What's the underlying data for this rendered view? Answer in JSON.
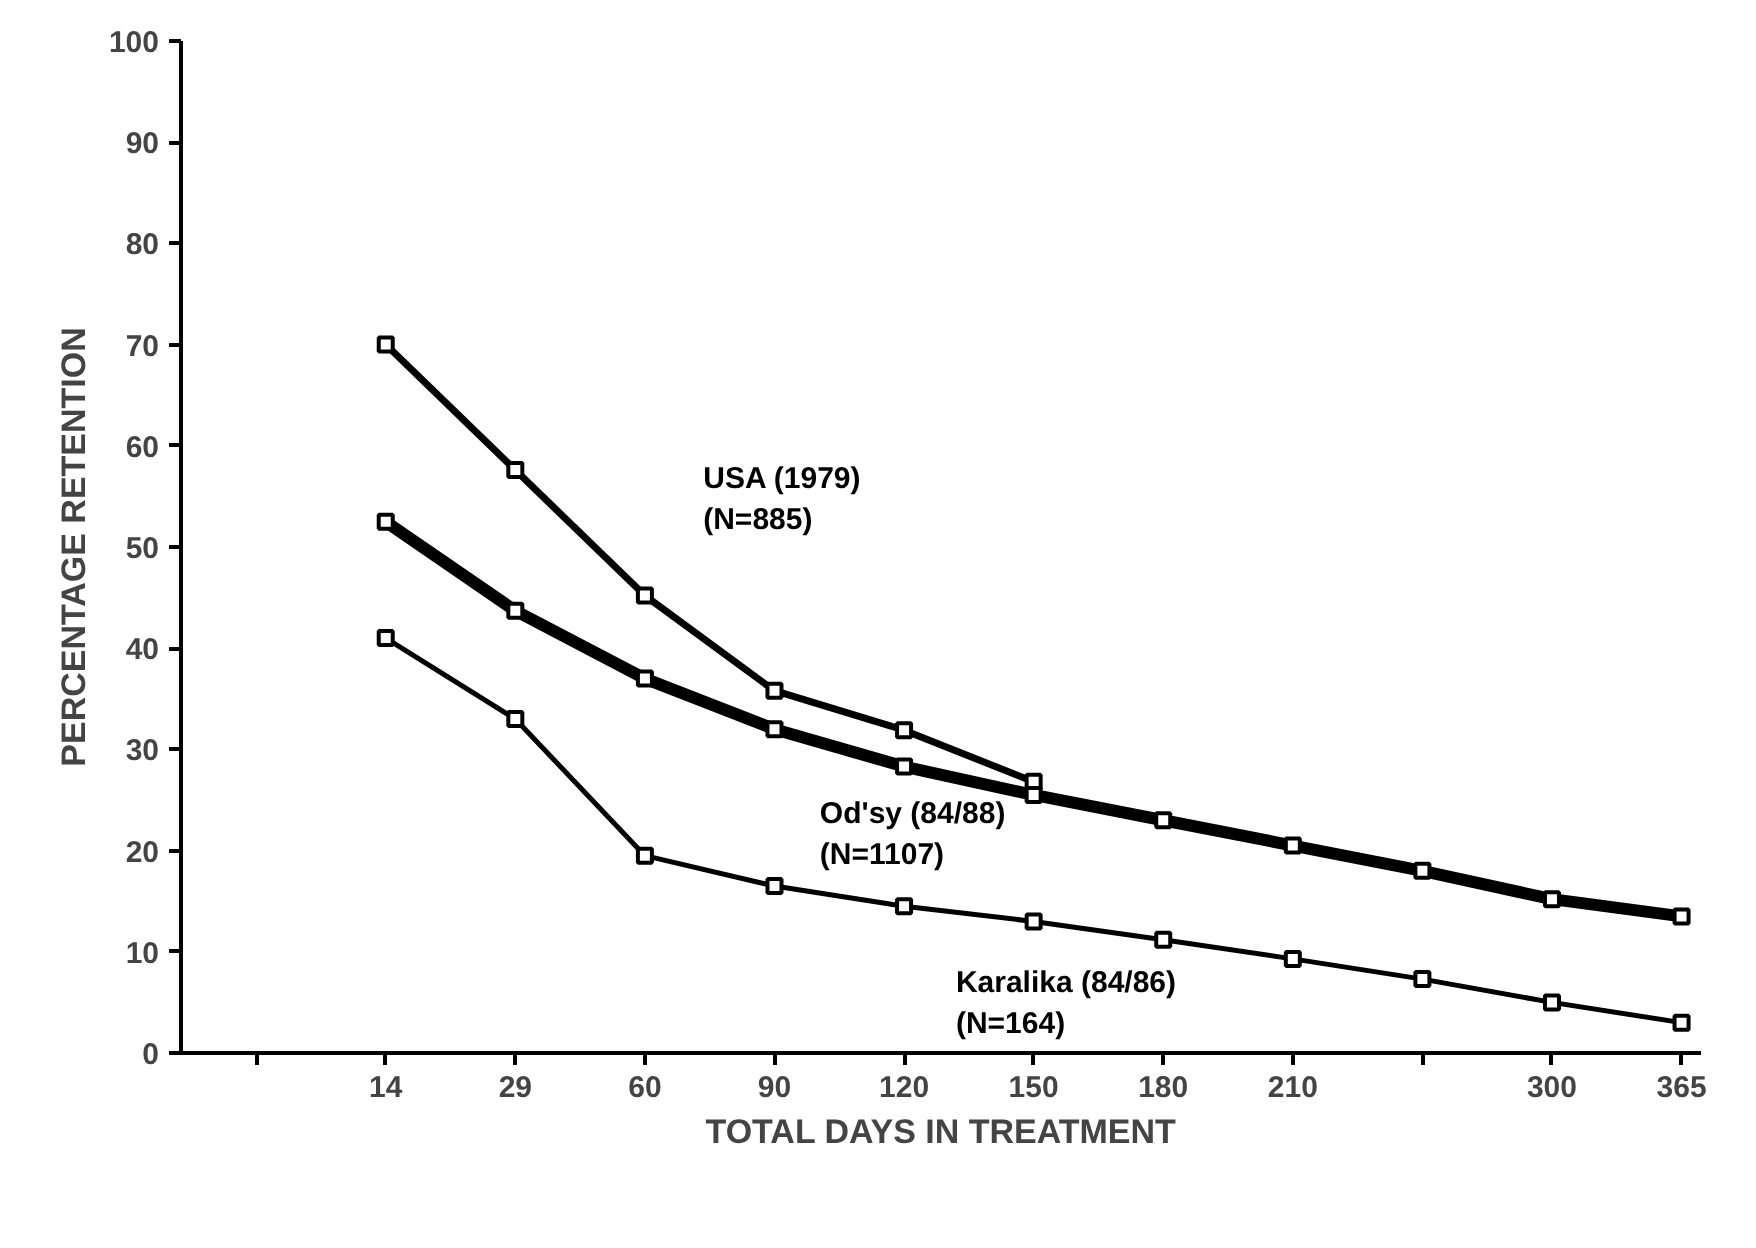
{
  "chart_data": {
    "type": "line",
    "xlabel": "TOTAL DAYS IN TREATMENT",
    "ylabel": "PERCENTAGE RETENTION",
    "categories": [
      "14",
      "29",
      "60",
      "90",
      "120",
      "150",
      "180",
      "210",
      null,
      "300",
      "365"
    ],
    "series": [
      {
        "name": "USA (1979)\n(N=885)",
        "color": "#000000",
        "values": [
          70,
          57.6,
          45.2,
          35.8,
          31.9,
          26.8,
          null,
          null,
          null,
          null,
          null
        ]
      },
      {
        "name": "Od'sy (84/88)\n(N=1107)",
        "color": "#000000",
        "values": [
          52.5,
          43.7,
          37,
          32,
          28.3,
          25.5,
          23,
          20.5,
          18,
          15.2,
          13.5
        ]
      },
      {
        "name": "Karalika (84/86)\n(N=164)",
        "color": "#000000",
        "values": [
          41,
          33,
          19.5,
          16.5,
          14.5,
          13,
          11.2,
          9.3,
          7.3,
          5,
          3
        ]
      }
    ],
    "ylim": [
      0,
      100
    ],
    "yticks": [
      0,
      10,
      20,
      30,
      40,
      50,
      60,
      70,
      80,
      90,
      100
    ],
    "grid": false,
    "legend": false,
    "marker": "square",
    "line_style": "solid"
  }
}
